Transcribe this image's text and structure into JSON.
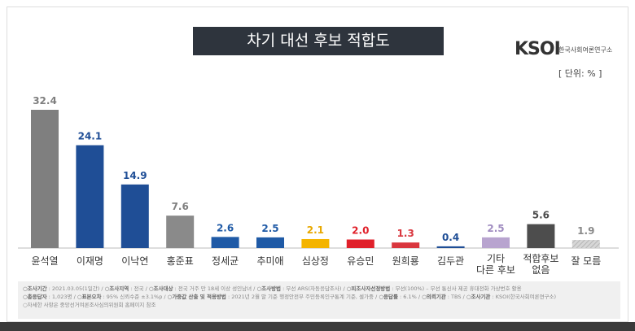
{
  "chart_data": {
    "type": "bar",
    "title": "차기 대선 후보 적합도",
    "unit": "[ 단위: % ]",
    "categories": [
      "윤석열",
      "이재명",
      "이낙연",
      "홍준표",
      "정세균",
      "추미애",
      "심상정",
      "유승민",
      "원희룡",
      "김두관",
      "기타\n다른 후보",
      "적합후보\n없음",
      "잘 모름"
    ],
    "values": [
      32.4,
      24.1,
      14.9,
      7.6,
      2.6,
      2.5,
      2.1,
      2.0,
      1.3,
      0.4,
      2.5,
      5.6,
      1.9
    ],
    "colors": [
      "#7f7f7f",
      "#1f4e96",
      "#1f4e96",
      "#8a8a8a",
      "#1f5aa6",
      "#1f5aa6",
      "#f4b400",
      "#e0202a",
      "#d9363e",
      "#1f4e96",
      "#b8a4cf",
      "#4d4d4d",
      "#c8c8c8"
    ],
    "label_colors": [
      "#7f7f7f",
      "#1f4e96",
      "#1f4e96",
      "#7f7f7f",
      "#1f5aa6",
      "#1f5aa6",
      "#e8a800",
      "#e0202a",
      "#d9363e",
      "#1f4e96",
      "#a08cc0",
      "#4d4d4d",
      "#8a8a8a"
    ],
    "ylim": [
      0,
      35
    ],
    "grid": false
  },
  "logo": {
    "text": "KSOI",
    "sub": "한국사회여론연구소"
  },
  "notes": [
    [
      {
        "k": "○조사기간",
        "v": " : 2021.03.05(1일간) / "
      },
      {
        "k": "○조사지역",
        "v": " : 전국 / "
      },
      {
        "k": "○조사대상",
        "v": " : 전국 거주 만 18세 이상 성인남녀 / "
      },
      {
        "k": "○조사방법",
        "v": " : 무선 ARS(자동응답조사) / "
      },
      {
        "k": "○피조사자선정방법",
        "v": " : 무선(100%) – 무선 통신사 제공 휴대전화 가상번호 활용"
      }
    ],
    [
      {
        "k": "○총응답자",
        "v": " : 1,023명 / "
      },
      {
        "k": "○표본오차",
        "v": " : 95% 신뢰수준 ±3.1%p / "
      },
      {
        "k": "○가중값 산출 및 적용방법",
        "v": " : 2021년 2월 말 기준 행정안전부 주민등록인구통계 기준, 셀가중 / "
      },
      {
        "k": "○응답률",
        "v": " : 6.1% / "
      },
      {
        "k": "○의뢰기관",
        "v": " : TBS / "
      },
      {
        "k": "○조사기관",
        "v": " : KSOI(한국사회여론연구소)"
      }
    ],
    [
      {
        "k": "",
        "v": "○자세한 사항은 중앙선거여론조사심의위원회 홈페이지 참조"
      }
    ]
  ]
}
